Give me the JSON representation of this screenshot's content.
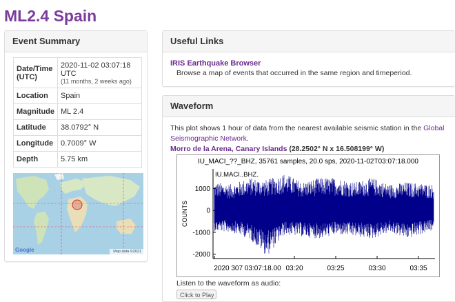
{
  "page": {
    "title": "ML2.4 Spain"
  },
  "summary": {
    "heading": "Event Summary",
    "rows": [
      {
        "key": "Date/Time (UTC)",
        "value": "2020-11-02 03:07:18 UTC",
        "sub": "(11 months, 2 weeks ago)"
      },
      {
        "key": "Location",
        "value": "Spain"
      },
      {
        "key": "Magnitude",
        "value": "ML 2.4"
      },
      {
        "key": "Latitude",
        "value": "38.0792° N"
      },
      {
        "key": "Longitude",
        "value": "0.7009° W"
      },
      {
        "key": "Depth",
        "value": "5.75 km"
      }
    ],
    "map": {
      "logo": "Google",
      "attribution": "Map data ©2021"
    }
  },
  "links": {
    "heading": "Useful Links",
    "item": {
      "label": "IRIS Earthquake Browser",
      "description": "Browse a map of events that occurred in the same region and timeperiod."
    }
  },
  "waveform": {
    "heading": "Waveform",
    "desc_prefix": "This plot shows 1 hour of data from the nearest available seismic station in the ",
    "desc_link": "Global Seismographic Network",
    "desc_suffix": ".",
    "station_name": "Morro de la Arena, Canary Islands",
    "station_coords": " (28.2502° N x 16.508199° W)",
    "plot_header": "IU_MACI_??_BHZ, 35761 samples, 20.0 sps, 2020-11-02T03:07:18.000",
    "audio_label": "Listen to the waveform as audio:",
    "audio_button": "Click to Play"
  },
  "chart_data": {
    "type": "line",
    "title": "IU_MACI_??_BHZ, 35761 samples, 20.0 sps, 2020-11-02T03:07:18.000",
    "trace_label": "IU.MACI..BHZ.",
    "ylabel": "COUNTS",
    "xlabel": "",
    "x_ticks": [
      "2020 307 03:07:18.00",
      "03:20",
      "03:25",
      "03:30",
      "03:35"
    ],
    "y_ticks": [
      1000,
      0,
      -1000,
      -2000
    ],
    "ylim": [
      -2200,
      1900
    ],
    "series_color": "#00008b",
    "amplitude_envelope": [
      {
        "t": 0.0,
        "max": 1300,
        "min": -950
      },
      {
        "t": 0.08,
        "max": 1200,
        "min": -1000
      },
      {
        "t": 0.16,
        "max": 1500,
        "min": -1300
      },
      {
        "t": 0.24,
        "max": 1400,
        "min": -2100
      },
      {
        "t": 0.32,
        "max": 1700,
        "min": -1100
      },
      {
        "t": 0.4,
        "max": 1300,
        "min": -1200
      },
      {
        "t": 0.48,
        "max": 1500,
        "min": -1300
      },
      {
        "t": 0.56,
        "max": 1500,
        "min": -1100
      },
      {
        "t": 0.64,
        "max": 1300,
        "min": -1200
      },
      {
        "t": 0.72,
        "max": 1500,
        "min": -1300
      },
      {
        "t": 0.8,
        "max": 1200,
        "min": -1000
      },
      {
        "t": 0.88,
        "max": 1300,
        "min": -1300
      },
      {
        "t": 1.0,
        "max": 1200,
        "min": -900
      }
    ]
  }
}
